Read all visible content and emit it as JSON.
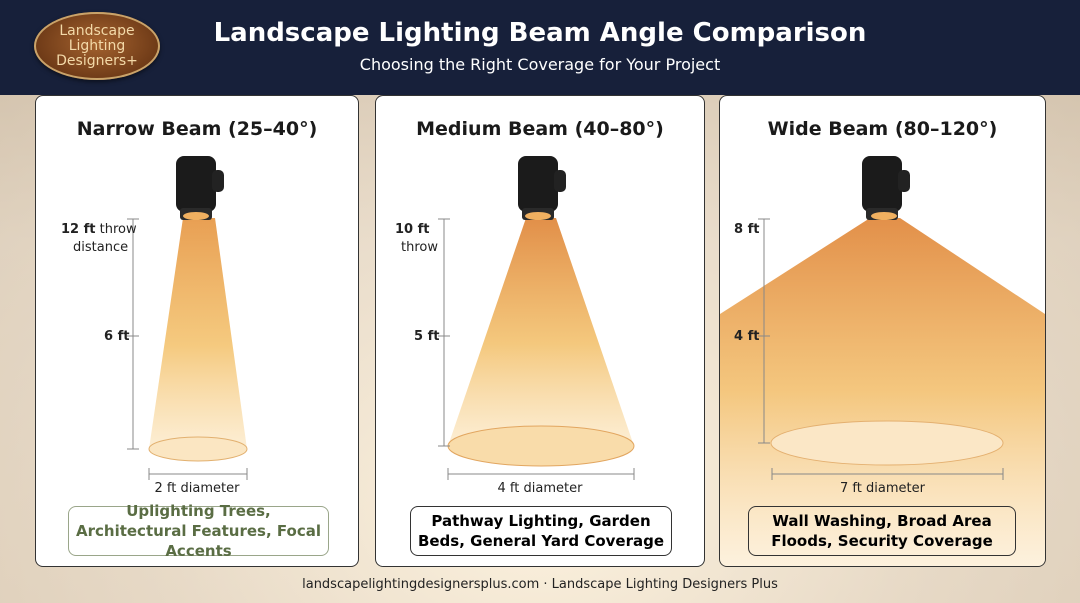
{
  "header": {
    "logo_text": "Landscape\nLighting\nDesigners+",
    "title": "Landscape Lighting Beam Angle Comparison",
    "subtitle": "Choosing the Right Coverage for Your Project"
  },
  "cards": [
    {
      "title": "Narrow Beam (25–40°)",
      "top_value": "12 ft",
      "top_suffix": "throw",
      "top_line2": "distance",
      "mid_label": "6 ft",
      "diameter": "2 ft diameter",
      "use": "Uplighting Trees, Architectural Features, Focal Accents"
    },
    {
      "title": "Medium Beam (40–80°)",
      "top_value": "10 ft",
      "top_suffix": "",
      "top_line2": "throw",
      "mid_label": "5 ft",
      "diameter": "4 ft diameter",
      "use": "Pathway Lighting, Garden Beds, General Yard Coverage"
    },
    {
      "title": "Wide Beam (80–120°)",
      "top_value": "8 ft",
      "top_suffix": "",
      "top_line2": "",
      "mid_label": "4 ft",
      "diameter": "7 ft diameter",
      "use": "Wall Washing, Broad Area Floods, Security Coverage"
    }
  ],
  "footer": "landscapelightingdesignersplus.com · Landscape Lighting Designers Plus",
  "colors": {
    "header_bg": "#17203a",
    "beam_top": "#e79a4a",
    "beam_bottom": "#fbe3b8",
    "use_green": "#5a6d44"
  }
}
